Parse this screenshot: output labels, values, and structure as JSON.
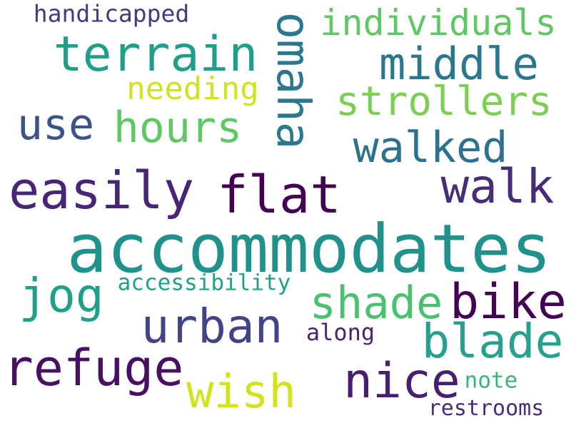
{
  "words": [
    {
      "text": "accommodates",
      "color": "#21918c"
    },
    {
      "text": "easily",
      "color": "#482677"
    },
    {
      "text": "flat",
      "color": "#440154"
    },
    {
      "text": "walk",
      "color": "#472c7a"
    },
    {
      "text": "terrain",
      "color": "#1f9e89"
    },
    {
      "text": "middle",
      "color": "#2a788e"
    },
    {
      "text": "use",
      "color": "#3b528b"
    },
    {
      "text": "hours",
      "color": "#5ec962"
    },
    {
      "text": "walked",
      "color": "#2c728e"
    },
    {
      "text": "omaha",
      "color": "#2a788e"
    },
    {
      "text": "strollers",
      "color": "#7ad151"
    },
    {
      "text": "individuals",
      "color": "#5ec962"
    },
    {
      "text": "handicapped",
      "color": "#443983"
    },
    {
      "text": "needing",
      "color": "#d2e21b"
    },
    {
      "text": "jog",
      "color": "#1fa088"
    },
    {
      "text": "urban",
      "color": "#414487"
    },
    {
      "text": "shade",
      "color": "#4ac16d"
    },
    {
      "text": "bike",
      "color": "#440154"
    },
    {
      "text": "blade",
      "color": "#25a18e"
    },
    {
      "text": "refuge",
      "color": "#471063"
    },
    {
      "text": "wish",
      "color": "#d2e21b"
    },
    {
      "text": "nice",
      "color": "#481f70"
    },
    {
      "text": "accessibility",
      "color": "#1fa187"
    },
    {
      "text": "along",
      "color": "#482475"
    },
    {
      "text": "note",
      "color": "#35b779"
    },
    {
      "text": "restrooms",
      "color": "#472d7b"
    }
  ]
}
